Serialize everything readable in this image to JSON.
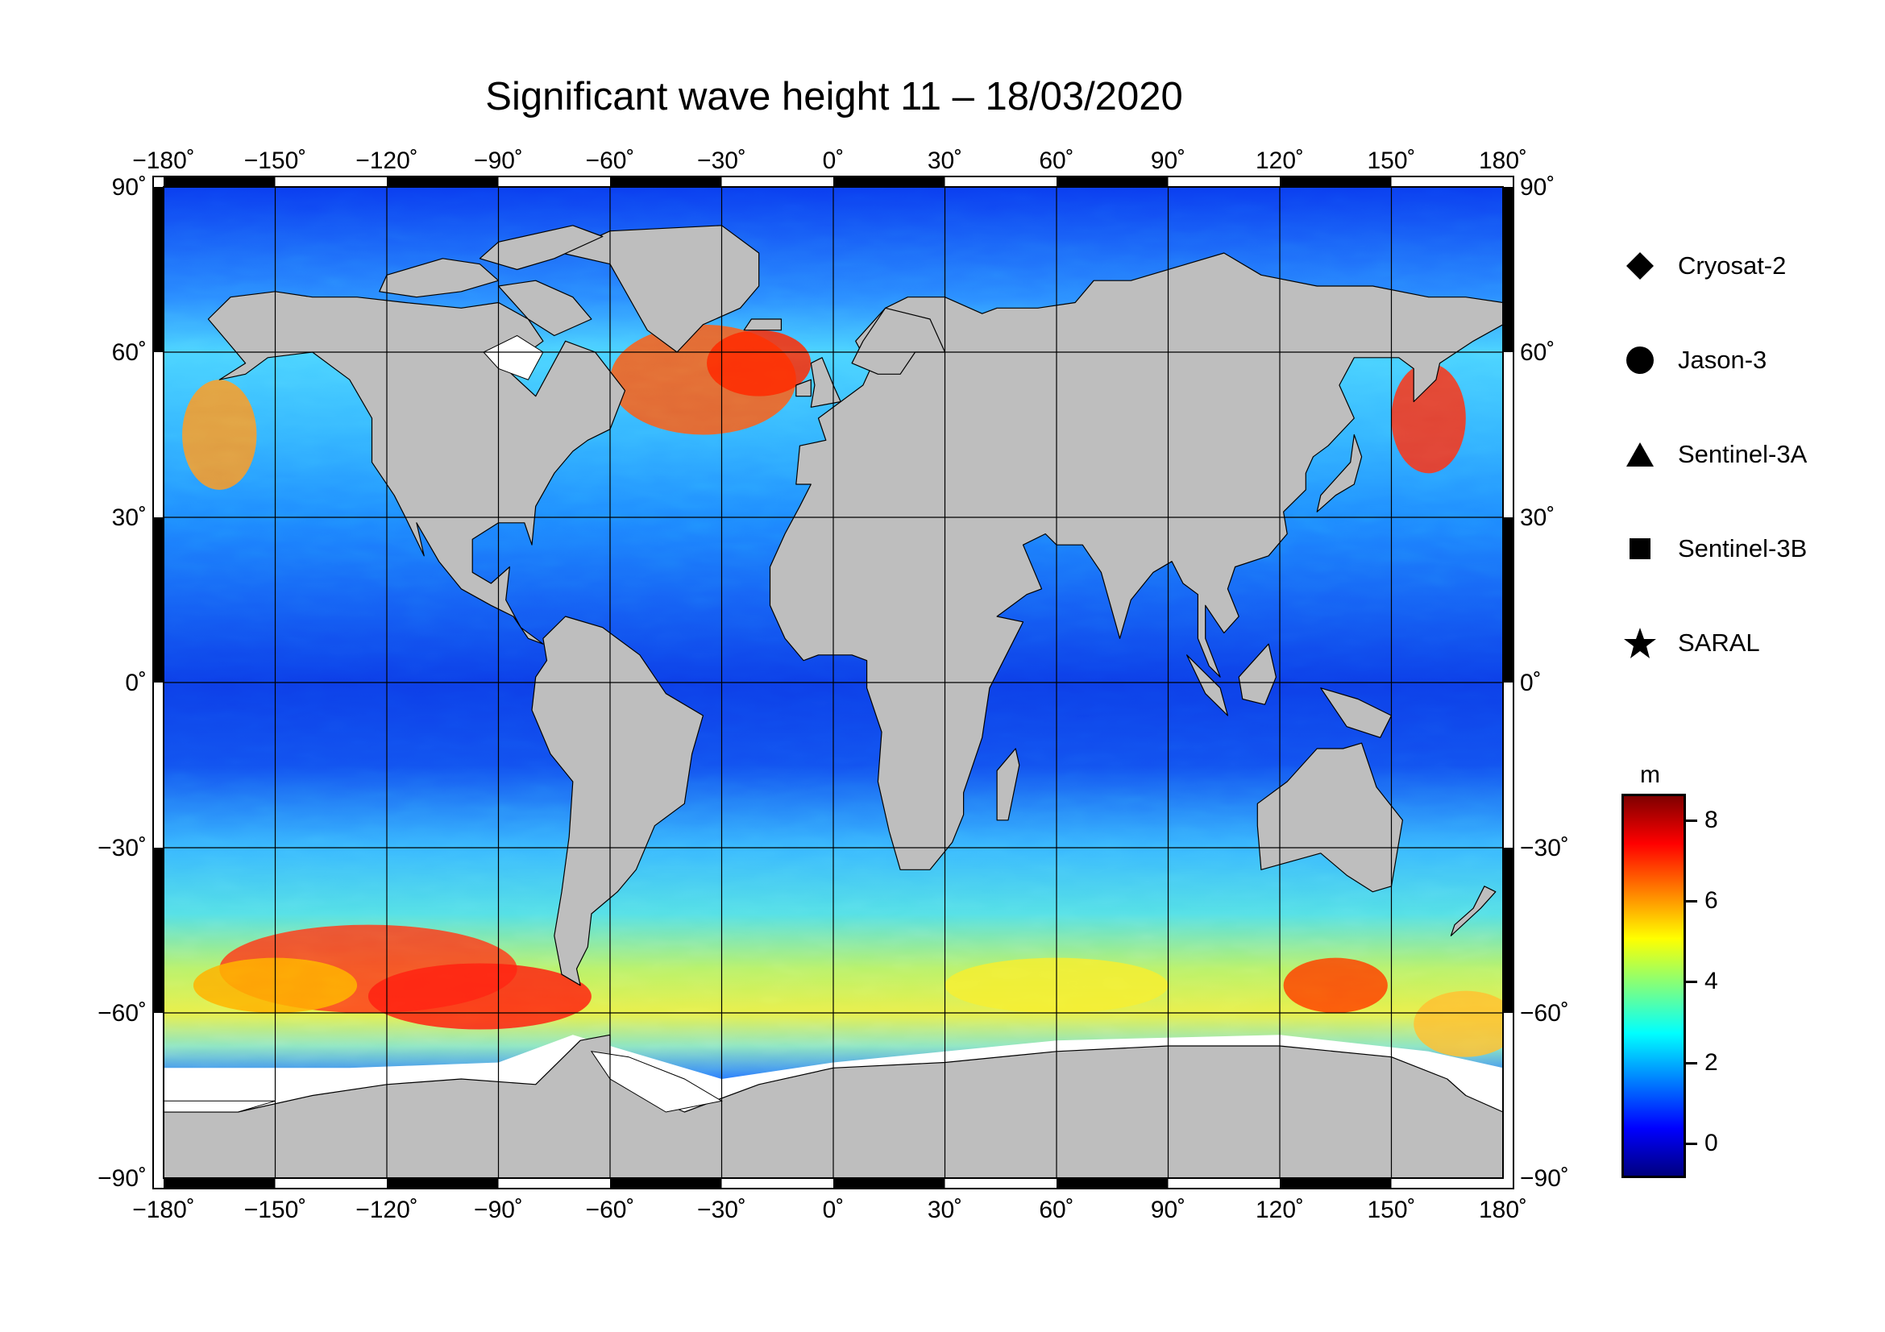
{
  "title": "Significant wave height 11 – 18/03/2020",
  "colors": {
    "land": "#bebebe",
    "ice": "#ffffff",
    "frame": "#000000",
    "colormap": [
      "#00007f",
      "#0000ff",
      "#007fff",
      "#00ffff",
      "#7fff7f",
      "#ffff00",
      "#ff7f00",
      "#ff0000",
      "#7f0000"
    ]
  },
  "map": {
    "projection": "equirectangular",
    "lon_range": [
      -180,
      180
    ],
    "lat_range": [
      -90,
      90
    ],
    "gridlines": true,
    "lon_ticks": [
      "−180˚",
      "−150˚",
      "−120˚",
      "−90˚",
      "−60˚",
      "−30˚",
      "0˚",
      "30˚",
      "60˚",
      "90˚",
      "120˚",
      "150˚",
      "180˚"
    ],
    "lat_ticks_left": [
      "90˚",
      "60˚",
      "30˚",
      "0˚",
      "−30˚",
      "−60˚",
      "−90˚"
    ],
    "lat_ticks_right": [
      "90˚",
      "60˚",
      "30˚",
      "0˚",
      "−30˚",
      "−60˚",
      "−90˚"
    ]
  },
  "legend": {
    "items": [
      {
        "label": "Cryosat-2",
        "icon": "diamond-icon"
      },
      {
        "label": "Jason-3",
        "icon": "circle-icon"
      },
      {
        "label": "Sentinel-3A",
        "icon": "triangle-icon"
      },
      {
        "label": "Sentinel-3B",
        "icon": "square-icon"
      },
      {
        "label": "SARAL",
        "icon": "star-icon"
      }
    ]
  },
  "colorbar": {
    "unit": "m",
    "range": [
      -0.8,
      8.6
    ],
    "ticks": [
      0,
      2,
      4,
      6,
      8
    ],
    "tick_labels": [
      "0",
      "2",
      "4",
      "6",
      "8"
    ]
  }
}
